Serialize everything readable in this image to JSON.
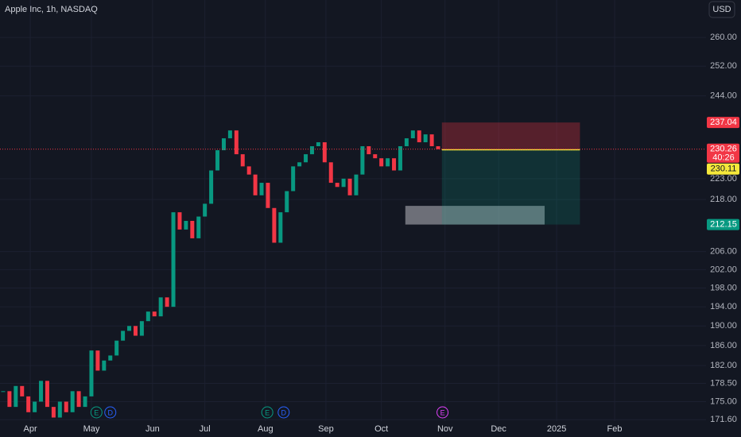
{
  "title": "Apple Inc, 1h, NASDAQ",
  "currency": "USD",
  "chart_data": {
    "type": "candlestick",
    "log_scale": true,
    "closes": [
      177,
      174,
      178,
      176,
      173,
      175,
      179,
      174,
      172,
      175,
      173,
      177,
      174,
      176,
      185,
      181,
      183,
      184,
      187,
      189,
      190,
      188,
      191,
      193,
      192,
      196,
      194,
      215,
      211,
      213,
      209,
      214,
      217,
      225,
      230,
      233,
      235,
      229,
      226,
      224,
      219,
      222,
      216,
      208,
      215,
      220,
      226,
      227,
      229,
      231,
      232,
      227,
      222,
      221,
      223,
      219,
      224,
      231,
      229,
      228,
      226,
      228,
      225,
      231,
      233,
      235,
      232,
      234,
      231,
      230.26
    ],
    "xlim": [
      -0.5,
      111.5
    ],
    "xticks": [
      {
        "value": 4.3,
        "label": "Apr"
      },
      {
        "value": 14,
        "label": "May"
      },
      {
        "value": 23.7,
        "label": "Jun"
      },
      {
        "value": 32,
        "label": "Jul"
      },
      {
        "value": 41.6,
        "label": "Aug"
      },
      {
        "value": 51.2,
        "label": "Sep"
      },
      {
        "value": 60,
        "label": "Oct"
      },
      {
        "value": 70.1,
        "label": "Nov"
      },
      {
        "value": 78.6,
        "label": "Dec"
      },
      {
        "value": 87.8,
        "label": "2025"
      },
      {
        "value": 97,
        "label": "Feb"
      }
    ],
    "ylim": [
      168.4,
      270.8
    ],
    "yticks": [
      {
        "value": 260,
        "label": "260.00"
      },
      {
        "value": 252,
        "label": "252.00"
      },
      {
        "value": 244,
        "label": "244.00"
      },
      {
        "value": 223,
        "label": "223.00"
      },
      {
        "value": 218,
        "label": "218.00"
      },
      {
        "value": 206,
        "label": "206.00"
      },
      {
        "value": 202,
        "label": "202.00"
      },
      {
        "value": 198,
        "label": "198.00"
      },
      {
        "value": 194,
        "label": "194.00"
      },
      {
        "value": 190,
        "label": "190.00"
      },
      {
        "value": 186,
        "label": "186.00"
      },
      {
        "value": 182,
        "label": "182.00"
      },
      {
        "value": 178.5,
        "label": "178.50"
      },
      {
        "value": 175,
        "label": "175.00"
      },
      {
        "value": 171.6,
        "label": "171.60"
      }
    ],
    "up_color": "#089981",
    "down_color": "#f23645",
    "last_price": {
      "value": 230.26,
      "countdown": "40:26"
    },
    "position": {
      "x": [
        69.6,
        91.5
      ],
      "stop": 237.04,
      "entry": 230.11,
      "target": 212.15,
      "stop_color": "#f23645",
      "entry_color": "#f5e83b",
      "target_color": "#089981"
    },
    "zone": {
      "x": [
        63.8,
        85.9
      ],
      "ylim": [
        212.15,
        216.5
      ]
    },
    "events": [
      {
        "x": 14.8,
        "label": "E",
        "color": "#089981"
      },
      {
        "x": 17,
        "label": "D",
        "color": "#2962ff"
      },
      {
        "x": 41.9,
        "label": "E",
        "color": "#089981"
      },
      {
        "x": 44.5,
        "label": "D",
        "color": "#2962ff"
      },
      {
        "x": 69.7,
        "label": "E",
        "color": "#e040fb"
      }
    ]
  }
}
